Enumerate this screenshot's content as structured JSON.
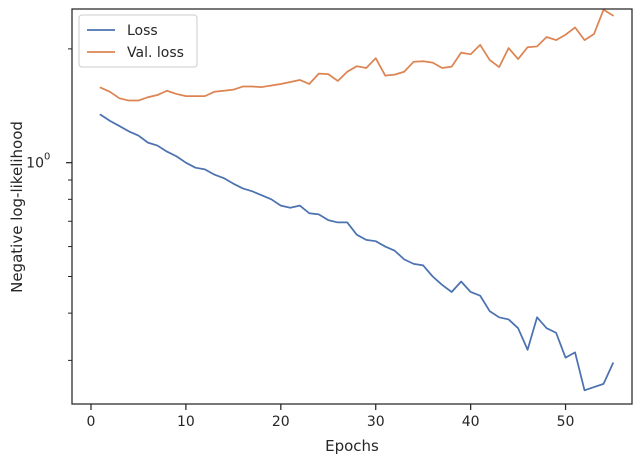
{
  "chart_data": {
    "type": "line",
    "xlabel": "Epochs",
    "ylabel": "Negative log-likelihood",
    "yscale": "log",
    "xlim": [
      -2,
      57
    ],
    "ylim": [
      0.23,
      2.55
    ],
    "xticks": [
      0,
      10,
      20,
      30,
      40,
      50
    ],
    "xtick_labels": [
      "0",
      "10",
      "20",
      "30",
      "40",
      "50"
    ],
    "ytick_major": [
      {
        "value": 1.0,
        "label": "10",
        "sup": "0"
      }
    ],
    "ytick_minor": [
      0.3,
      0.4,
      0.5,
      0.6,
      0.7,
      0.8,
      0.9,
      2.0
    ],
    "grid": false,
    "legend": "top-left",
    "x": [
      1,
      2,
      3,
      4,
      5,
      6,
      7,
      8,
      9,
      10,
      11,
      12,
      13,
      14,
      15,
      16,
      17,
      18,
      19,
      20,
      21,
      22,
      23,
      24,
      25,
      26,
      27,
      28,
      29,
      30,
      31,
      32,
      33,
      34,
      35,
      36,
      37,
      38,
      39,
      40,
      41,
      42,
      43,
      44,
      45,
      46,
      47,
      48,
      49,
      50,
      51,
      52,
      53,
      54,
      55
    ],
    "series": [
      {
        "name": "Loss",
        "color": "#4c72b0",
        "values": [
          1.34,
          1.29,
          1.25,
          1.21,
          1.18,
          1.13,
          1.11,
          1.07,
          1.04,
          1.0,
          0.97,
          0.96,
          0.93,
          0.91,
          0.88,
          0.855,
          0.84,
          0.82,
          0.8,
          0.77,
          0.76,
          0.77,
          0.735,
          0.73,
          0.705,
          0.695,
          0.695,
          0.645,
          0.625,
          0.62,
          0.6,
          0.585,
          0.555,
          0.54,
          0.535,
          0.5,
          0.475,
          0.455,
          0.485,
          0.455,
          0.445,
          0.405,
          0.39,
          0.385,
          0.365,
          0.32,
          0.39,
          0.365,
          0.355,
          0.305,
          0.315,
          0.25,
          0.255,
          0.26,
          0.295
        ]
      },
      {
        "name": "Val. loss",
        "color": "#dd8452",
        "values": [
          1.58,
          1.54,
          1.48,
          1.46,
          1.46,
          1.49,
          1.51,
          1.55,
          1.52,
          1.5,
          1.5,
          1.5,
          1.54,
          1.55,
          1.56,
          1.59,
          1.59,
          1.585,
          1.6,
          1.615,
          1.635,
          1.655,
          1.615,
          1.72,
          1.715,
          1.645,
          1.74,
          1.8,
          1.78,
          1.89,
          1.7,
          1.71,
          1.74,
          1.85,
          1.855,
          1.84,
          1.78,
          1.795,
          1.955,
          1.935,
          2.05,
          1.87,
          1.79,
          2.01,
          1.88,
          2.02,
          2.03,
          2.15,
          2.11,
          2.18,
          2.28,
          2.11,
          2.19,
          2.54,
          2.45
        ]
      }
    ]
  }
}
